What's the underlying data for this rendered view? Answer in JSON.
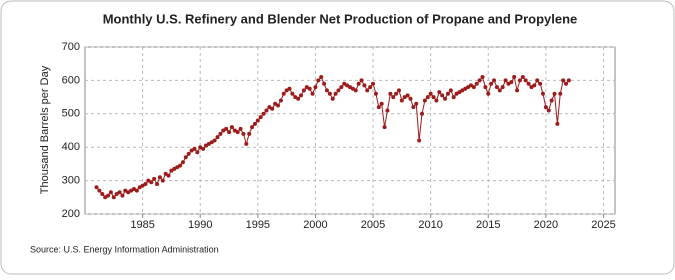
{
  "chart_data": {
    "type": "line",
    "title": "Monthly U.S. Refinery and Blender Net Production of Propane and Propylene",
    "y_label": "Thousand Barrels per Day",
    "source": "Source: U.S. Energy Information Administration",
    "xlim": [
      1980,
      2026
    ],
    "xticks": [
      1985,
      1990,
      1995,
      2000,
      2005,
      2010,
      2015,
      2020,
      2025
    ],
    "ylim": [
      200,
      700
    ],
    "yticks": [
      200,
      300,
      400,
      500,
      600,
      700
    ],
    "grid": true,
    "x": [
      1981,
      1981.25,
      1981.5,
      1981.75,
      1982,
      1982.25,
      1982.5,
      1982.75,
      1983,
      1983.25,
      1983.5,
      1983.75,
      1984,
      1984.25,
      1984.5,
      1984.75,
      1985,
      1985.25,
      1985.5,
      1985.75,
      1986,
      1986.25,
      1986.5,
      1986.75,
      1987,
      1987.25,
      1987.5,
      1987.75,
      1988,
      1988.25,
      1988.5,
      1988.75,
      1989,
      1989.25,
      1989.5,
      1989.75,
      1990,
      1990.25,
      1990.5,
      1990.75,
      1991,
      1991.25,
      1991.5,
      1991.75,
      1992,
      1992.25,
      1992.5,
      1992.75,
      1993,
      1993.25,
      1993.5,
      1993.75,
      1994,
      1994.25,
      1994.5,
      1994.75,
      1995,
      1995.25,
      1995.5,
      1995.75,
      1996,
      1996.25,
      1996.5,
      1996.75,
      1997,
      1997.25,
      1997.5,
      1997.75,
      1998,
      1998.25,
      1998.5,
      1998.75,
      1999,
      1999.25,
      1999.5,
      1999.75,
      2000,
      2000.25,
      2000.5,
      2000.75,
      2001,
      2001.25,
      2001.5,
      2001.75,
      2002,
      2002.25,
      2002.5,
      2002.75,
      2003,
      2003.25,
      2003.5,
      2003.75,
      2004,
      2004.25,
      2004.5,
      2004.75,
      2005,
      2005.25,
      2005.5,
      2005.75,
      2006,
      2006.25,
      2006.5,
      2006.75,
      2007,
      2007.25,
      2007.5,
      2007.75,
      2008,
      2008.25,
      2008.5,
      2008.75,
      2009,
      2009.25,
      2009.5,
      2009.75,
      2010,
      2010.25,
      2010.5,
      2010.75,
      2011,
      2011.25,
      2011.5,
      2011.75,
      2012,
      2012.25,
      2012.5,
      2012.75,
      2013,
      2013.25,
      2013.5,
      2013.75,
      2014,
      2014.25,
      2014.5,
      2014.75,
      2015,
      2015.25,
      2015.5,
      2015.75,
      2016,
      2016.25,
      2016.5,
      2016.75,
      2017,
      2017.25,
      2017.5,
      2017.75,
      2018,
      2018.25,
      2018.5,
      2018.75,
      2019,
      2019.25,
      2019.5,
      2019.75,
      2020,
      2020.25,
      2020.5,
      2020.75,
      2021,
      2021.25,
      2021.5,
      2021.75,
      2022
    ],
    "series": [
      {
        "color": "#9c1c1c",
        "values": [
          280,
          270,
          260,
          250,
          255,
          265,
          250,
          260,
          265,
          255,
          270,
          265,
          270,
          275,
          270,
          280,
          285,
          290,
          300,
          295,
          305,
          290,
          310,
          300,
          320,
          315,
          330,
          335,
          340,
          345,
          355,
          370,
          380,
          390,
          395,
          385,
          400,
          395,
          405,
          410,
          415,
          420,
          430,
          440,
          450,
          455,
          445,
          460,
          450,
          445,
          455,
          440,
          410,
          440,
          460,
          470,
          480,
          490,
          500,
          510,
          520,
          515,
          530,
          525,
          540,
          560,
          570,
          575,
          560,
          550,
          545,
          555,
          570,
          580,
          575,
          560,
          580,
          600,
          610,
          590,
          570,
          560,
          545,
          560,
          570,
          580,
          590,
          585,
          580,
          575,
          570,
          590,
          600,
          585,
          570,
          580,
          590,
          560,
          520,
          530,
          460,
          510,
          560,
          550,
          560,
          570,
          540,
          550,
          555,
          545,
          520,
          530,
          420,
          500,
          540,
          550,
          560,
          550,
          540,
          565,
          555,
          545,
          560,
          570,
          550,
          560,
          565,
          570,
          575,
          580,
          585,
          580,
          590,
          600,
          610,
          580,
          560,
          590,
          600,
          580,
          570,
          580,
          600,
          590,
          595,
          610,
          570,
          600,
          610,
          600,
          590,
          580,
          585,
          600,
          590,
          560,
          520,
          510,
          540,
          560,
          470,
          560,
          600,
          590,
          600
        ]
      }
    ]
  }
}
